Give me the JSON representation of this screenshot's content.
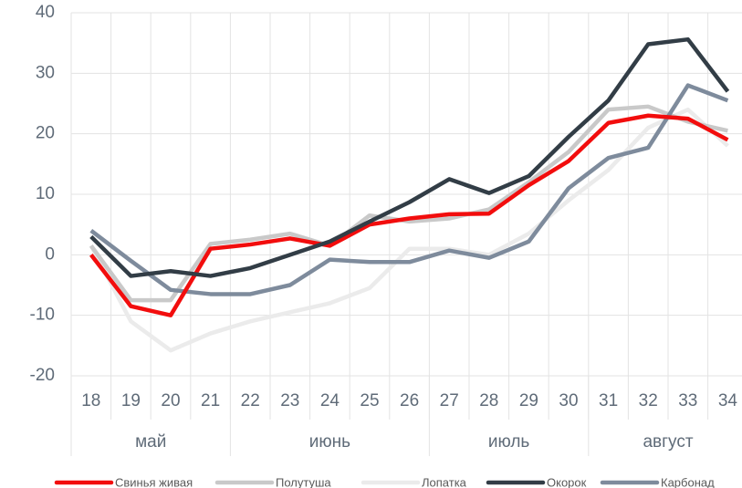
{
  "chart_data": {
    "type": "line",
    "categories": [
      "18",
      "19",
      "20",
      "21",
      "22",
      "23",
      "24",
      "25",
      "26",
      "27",
      "28",
      "29",
      "30",
      "31",
      "32",
      "33",
      "34"
    ],
    "groups": [
      {
        "label": "май",
        "span": 4
      },
      {
        "label": "июнь",
        "span": 5
      },
      {
        "label": "июль",
        "span": 4
      },
      {
        "label": "август",
        "span": 4
      }
    ],
    "series": [
      {
        "name": "Лопатка",
        "color": "#ebebeb",
        "values": [
          1.5,
          -11,
          -15.8,
          -13,
          -11,
          -9.5,
          -8,
          -5.5,
          1,
          1,
          0,
          3.5,
          9,
          14,
          21,
          24,
          18
        ]
      },
      {
        "name": "Полутуша",
        "color": "#c9c9c9",
        "values": [
          1.5,
          -7.5,
          -7.5,
          1.8,
          2.5,
          3.5,
          1.5,
          6.5,
          5.5,
          6,
          7.5,
          12,
          17,
          24,
          24.5,
          22,
          20.5
        ]
      },
      {
        "name": "Карбонад",
        "color": "#7e8b9c",
        "values": [
          4,
          -1,
          -5.8,
          -6.5,
          -6.5,
          -5,
          -0.8,
          -1.2,
          -1.2,
          0.7,
          -0.5,
          2.2,
          11,
          16,
          17.7,
          28,
          25.5
        ]
      },
      {
        "name": "Свинья живая",
        "color": "#f20d0d",
        "values": [
          0,
          -8.5,
          -10,
          1,
          1.7,
          2.7,
          1.5,
          5,
          6,
          6.7,
          6.8,
          11.5,
          15.5,
          21.8,
          23,
          22.5,
          19
        ]
      },
      {
        "name": "Окорок",
        "color": "#323d46",
        "values": [
          3,
          -3.5,
          -2.7,
          -3.5,
          -2.2,
          0,
          2.2,
          5.5,
          8.7,
          12.5,
          10.2,
          13,
          19.5,
          25.5,
          34.8,
          35.6,
          27
        ]
      }
    ],
    "legend_order": [
      3,
      1,
      0,
      4,
      2
    ],
    "ylim": [
      -20,
      40
    ],
    "yticks": [
      -20,
      -10,
      0,
      10,
      20,
      30,
      40
    ],
    "grid": true
  }
}
